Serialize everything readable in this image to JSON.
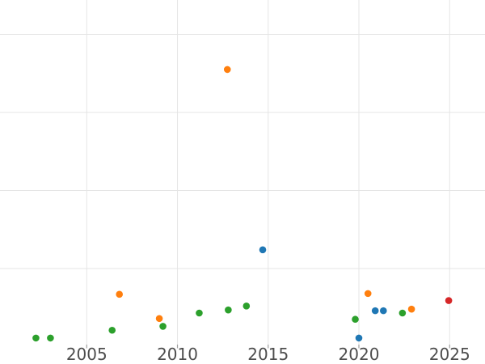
{
  "figure": {
    "background_color": "#ffffff",
    "grid_color": "#e5e5e5",
    "tick_mark_color": "#9e9e9e",
    "tick_label_color": "#4d4d4d",
    "tick_label_font_size_px": 20
  },
  "chart_data": {
    "type": "scatter",
    "title": "",
    "xlabel": "",
    "ylabel": "",
    "grid": true,
    "legend": "none",
    "x_tick_labels": [
      "2005",
      "2010",
      "2015",
      "2020",
      "2025"
    ],
    "x_ticks": [
      2005,
      2010,
      2015,
      2020,
      2025
    ],
    "y_axis_labels_visible": false,
    "y_gridline_values": [
      1,
      2,
      3,
      4
    ],
    "xlim": [
      2000.22,
      2026.95
    ],
    "ylim": [
      0.026,
      4.44
    ],
    "marker_radius_px": 4.3,
    "series": [
      {
        "name": "green-series",
        "color": "#2ca02c",
        "points": [
          {
            "x": 2002.2,
            "y": 0.11
          },
          {
            "x": 2003.0,
            "y": 0.11
          },
          {
            "x": 2006.4,
            "y": 0.21
          },
          {
            "x": 2009.2,
            "y": 0.26
          },
          {
            "x": 2011.2,
            "y": 0.43
          },
          {
            "x": 2012.8,
            "y": 0.47
          },
          {
            "x": 2013.8,
            "y": 0.52
          },
          {
            "x": 2019.8,
            "y": 0.35
          },
          {
            "x": 2022.4,
            "y": 0.43
          }
        ]
      },
      {
        "name": "orange-series",
        "color": "#ff7f0e",
        "points": [
          {
            "x": 2006.8,
            "y": 0.67
          },
          {
            "x": 2009.0,
            "y": 0.36
          },
          {
            "x": 2012.75,
            "y": 3.55
          },
          {
            "x": 2020.5,
            "y": 0.68
          },
          {
            "x": 2022.9,
            "y": 0.48
          }
        ]
      },
      {
        "name": "blue-series",
        "color": "#1f77b4",
        "points": [
          {
            "x": 2014.7,
            "y": 1.24
          },
          {
            "x": 2020.0,
            "y": 0.11
          },
          {
            "x": 2020.9,
            "y": 0.46
          },
          {
            "x": 2021.35,
            "y": 0.46
          }
        ]
      },
      {
        "name": "red-series",
        "color": "#d62728",
        "points": [
          {
            "x": 2024.95,
            "y": 0.59
          }
        ]
      }
    ]
  }
}
